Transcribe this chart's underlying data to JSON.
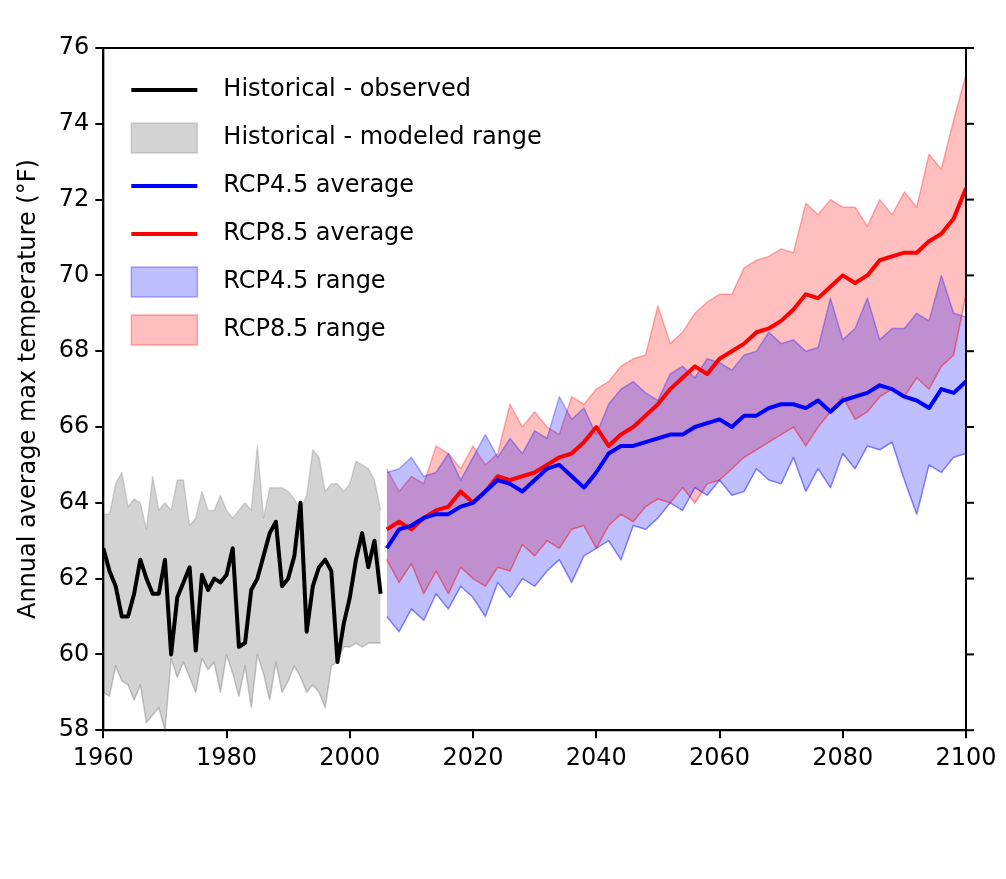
{
  "chart_data": {
    "type": "line",
    "ylabel": "Annual average max temperature (°F)",
    "xlim": [
      1960,
      2100
    ],
    "xticks": [
      1960,
      1980,
      2000,
      2020,
      2040,
      2060,
      2080,
      2100
    ],
    "ylim": [
      58,
      76
    ],
    "yticks": [
      58,
      60,
      62,
      64,
      66,
      68,
      70,
      72,
      74,
      76
    ],
    "grid": false,
    "legend": "top left",
    "series": [
      {
        "name": "Historical - observed",
        "type": "line",
        "color": "#000000",
        "x": [
          1960,
          1961,
          1962,
          1963,
          1964,
          1965,
          1966,
          1967,
          1968,
          1969,
          1970,
          1971,
          1972,
          1973,
          1974,
          1975,
          1976,
          1977,
          1978,
          1979,
          1980,
          1981,
          1982,
          1983,
          1984,
          1985,
          1986,
          1987,
          1988,
          1989,
          1990,
          1991,
          1992,
          1993,
          1994,
          1995,
          1996,
          1997,
          1998,
          1999,
          2000,
          2001,
          2002,
          2003,
          2004,
          2005
        ],
        "values": [
          62.8,
          62.2,
          61.8,
          61.0,
          61.0,
          61.6,
          62.5,
          62.0,
          61.6,
          61.6,
          62.5,
          60.0,
          61.5,
          61.9,
          62.3,
          60.1,
          62.1,
          61.7,
          62.0,
          61.9,
          62.1,
          62.8,
          60.2,
          60.3,
          61.7,
          62.0,
          62.6,
          63.2,
          63.5,
          61.8,
          62.0,
          62.6,
          64.0,
          60.6,
          61.8,
          62.3,
          62.5,
          62.2,
          59.8,
          60.8,
          61.5,
          62.5,
          63.2,
          62.3,
          63.0,
          61.6
        ]
      },
      {
        "name": "Historical - modeled range",
        "type": "area",
        "color": "#808080",
        "x": [
          1960,
          1961,
          1962,
          1963,
          1964,
          1965,
          1966,
          1967,
          1968,
          1969,
          1970,
          1971,
          1972,
          1973,
          1974,
          1975,
          1976,
          1977,
          1978,
          1979,
          1980,
          1981,
          1982,
          1983,
          1984,
          1985,
          1986,
          1987,
          1988,
          1989,
          1990,
          1991,
          1992,
          1993,
          1994,
          1995,
          1996,
          1997,
          1998,
          1999,
          2000,
          2001,
          2002,
          2003,
          2004,
          2005
        ],
        "values": [
          63.7,
          63.7,
          64.5,
          64.8,
          63.9,
          64.1,
          64.0,
          63.3,
          64.7,
          63.8,
          64.0,
          63.8,
          64.6,
          64.6,
          63.4,
          63.6,
          64.3,
          63.8,
          63.8,
          64.2,
          63.8,
          63.6,
          63.8,
          64.0,
          63.8,
          65.5,
          63.6,
          64.4,
          64.4,
          64.4,
          64.3,
          64.1,
          63.8,
          64.2,
          65.4,
          65.2,
          64.3,
          64.5,
          64.5,
          64.3,
          64.5,
          65.1,
          65.0,
          64.9,
          64.6,
          63.8
        ]
      },
      {
        "type": "line",
        "color": "#808080",
        "x": [
          1960,
          1961,
          1962,
          1963,
          1964,
          1965,
          1966,
          1967,
          1968,
          1969,
          1970,
          1971,
          1972,
          1973,
          1974,
          1975,
          1976,
          1977,
          1978,
          1979,
          1980,
          1981,
          1982,
          1983,
          1984,
          1985,
          1986,
          1987,
          1988,
          1989,
          1990,
          1991,
          1992,
          1993,
          1994,
          1995,
          1996,
          1997,
          1998,
          1999,
          2000,
          2001,
          2002,
          2003,
          2004,
          2005
        ],
        "values": [
          59.0,
          58.9,
          59.7,
          59.3,
          59.2,
          58.8,
          59.2,
          58.2,
          58.4,
          58.6,
          58.0,
          59.9,
          59.4,
          59.8,
          59.4,
          59.0,
          59.9,
          59.6,
          59.8,
          59.0,
          60.0,
          59.5,
          58.9,
          59.7,
          58.6,
          60.0,
          59.5,
          58.8,
          59.8,
          59.0,
          59.3,
          59.7,
          59.4,
          59.0,
          59.2,
          59.0,
          58.6,
          59.7,
          59.8,
          60.2,
          60.2,
          60.3,
          60.2,
          60.3,
          60.3,
          60.3
        ]
      },
      {
        "name": "RCP4.5 average",
        "type": "line",
        "color": "#0000ff",
        "x": [
          2006,
          2008,
          2010,
          2012,
          2014,
          2016,
          2018,
          2020,
          2022,
          2024,
          2026,
          2028,
          2030,
          2032,
          2034,
          2036,
          2038,
          2040,
          2042,
          2044,
          2046,
          2048,
          2050,
          2052,
          2054,
          2056,
          2058,
          2060,
          2062,
          2064,
          2066,
          2068,
          2070,
          2072,
          2074,
          2076,
          2078,
          2080,
          2082,
          2084,
          2086,
          2088,
          2090,
          2092,
          2094,
          2096,
          2098,
          2100
        ],
        "values": [
          62.8,
          63.3,
          63.4,
          63.6,
          63.7,
          63.7,
          63.9,
          64.0,
          64.3,
          64.6,
          64.5,
          64.3,
          64.6,
          64.9,
          65.0,
          64.7,
          64.4,
          64.8,
          65.3,
          65.5,
          65.5,
          65.6,
          65.7,
          65.8,
          65.8,
          66.0,
          66.1,
          66.2,
          66.0,
          66.3,
          66.3,
          66.5,
          66.6,
          66.6,
          66.5,
          66.7,
          66.4,
          66.7,
          66.8,
          66.9,
          67.1,
          67.0,
          66.8,
          66.7,
          66.5,
          67.0,
          66.9,
          67.2
        ]
      },
      {
        "name": "RCP8.5 average",
        "type": "line",
        "color": "#ff0000",
        "x": [
          2006,
          2008,
          2010,
          2012,
          2014,
          2016,
          2018,
          2020,
          2022,
          2024,
          2026,
          2028,
          2030,
          2032,
          2034,
          2036,
          2038,
          2040,
          2042,
          2044,
          2046,
          2048,
          2050,
          2052,
          2054,
          2056,
          2058,
          2060,
          2062,
          2064,
          2066,
          2068,
          2070,
          2072,
          2074,
          2076,
          2078,
          2080,
          2082,
          2084,
          2086,
          2088,
          2090,
          2092,
          2094,
          2096,
          2098,
          2100
        ],
        "values": [
          63.3,
          63.5,
          63.3,
          63.6,
          63.8,
          63.9,
          64.3,
          64.0,
          64.3,
          64.7,
          64.6,
          64.7,
          64.8,
          65.0,
          65.2,
          65.3,
          65.6,
          66.0,
          65.5,
          65.8,
          66.0,
          66.3,
          66.6,
          67.0,
          67.3,
          67.6,
          67.4,
          67.8,
          68.0,
          68.2,
          68.5,
          68.6,
          68.8,
          69.1,
          69.5,
          69.4,
          69.7,
          70.0,
          69.8,
          70.0,
          70.4,
          70.5,
          70.6,
          70.6,
          70.9,
          71.1,
          71.5,
          72.3
        ]
      },
      {
        "name": "RCP4.5 range",
        "type": "area",
        "color": "#0000ff",
        "x": [
          2006,
          2008,
          2010,
          2012,
          2014,
          2016,
          2018,
          2020,
          2022,
          2024,
          2026,
          2028,
          2030,
          2032,
          2034,
          2036,
          2038,
          2040,
          2042,
          2044,
          2046,
          2048,
          2050,
          2052,
          2054,
          2056,
          2058,
          2060,
          2062,
          2064,
          2066,
          2068,
          2070,
          2072,
          2074,
          2076,
          2078,
          2080,
          2082,
          2084,
          2086,
          2088,
          2090,
          2092,
          2094,
          2096,
          2098,
          2100
        ],
        "values": [
          64.8,
          64.9,
          65.2,
          64.7,
          64.8,
          65.3,
          64.6,
          65.2,
          65.8,
          65.2,
          65.7,
          65.3,
          65.9,
          65.7,
          66.8,
          66.2,
          66.5,
          65.8,
          66.6,
          67.0,
          67.2,
          66.9,
          66.7,
          67.4,
          67.6,
          67.3,
          67.8,
          67.7,
          67.5,
          67.9,
          68.0,
          68.5,
          68.2,
          68.3,
          68.0,
          68.1,
          69.4,
          68.3,
          68.6,
          69.4,
          68.3,
          68.6,
          68.6,
          69.0,
          68.8,
          70.0,
          69.0,
          68.9
        ]
      },
      {
        "type": "line",
        "color": "#0000ff",
        "x": [
          2006,
          2008,
          2010,
          2012,
          2014,
          2016,
          2018,
          2020,
          2022,
          2024,
          2026,
          2028,
          2030,
          2032,
          2034,
          2036,
          2038,
          2040,
          2042,
          2044,
          2046,
          2048,
          2050,
          2052,
          2054,
          2056,
          2058,
          2060,
          2062,
          2064,
          2066,
          2068,
          2070,
          2072,
          2074,
          2076,
          2078,
          2080,
          2082,
          2084,
          2086,
          2088,
          2090,
          2092,
          2094,
          2096,
          2098,
          2100
        ],
        "values": [
          61.0,
          60.6,
          61.2,
          60.9,
          61.6,
          61.2,
          61.8,
          61.5,
          61.0,
          61.9,
          61.5,
          62.0,
          61.8,
          62.2,
          62.5,
          61.9,
          62.6,
          62.8,
          63.0,
          62.5,
          63.4,
          63.3,
          63.6,
          64.0,
          63.8,
          64.4,
          64.2,
          64.6,
          64.2,
          64.3,
          64.9,
          64.6,
          64.5,
          65.2,
          64.3,
          64.9,
          64.4,
          65.3,
          64.9,
          65.5,
          65.4,
          65.6,
          64.6,
          63.7,
          65.0,
          64.8,
          65.2,
          65.3
        ]
      },
      {
        "name": "RCP8.5 range",
        "type": "area",
        "color": "#ff0000",
        "x": [
          2006,
          2008,
          2010,
          2012,
          2014,
          2016,
          2018,
          2020,
          2022,
          2024,
          2026,
          2028,
          2030,
          2032,
          2034,
          2036,
          2038,
          2040,
          2042,
          2044,
          2046,
          2048,
          2050,
          2052,
          2054,
          2056,
          2058,
          2060,
          2062,
          2064,
          2066,
          2068,
          2070,
          2072,
          2074,
          2076,
          2078,
          2080,
          2082,
          2084,
          2086,
          2088,
          2090,
          2092,
          2094,
          2096,
          2098,
          2100
        ],
        "values": [
          64.9,
          64.3,
          64.7,
          64.5,
          65.5,
          65.3,
          64.9,
          65.5,
          65.0,
          65.3,
          66.6,
          66.0,
          66.4,
          66.0,
          65.8,
          66.8,
          66.6,
          67.0,
          67.2,
          67.6,
          67.8,
          67.9,
          69.2,
          68.2,
          68.5,
          69.0,
          69.3,
          69.5,
          69.5,
          70.2,
          70.4,
          70.5,
          70.7,
          70.6,
          71.9,
          71.6,
          72.0,
          71.8,
          71.8,
          71.3,
          72.0,
          71.6,
          72.2,
          71.8,
          73.2,
          72.8,
          74.1,
          75.3
        ]
      },
      {
        "type": "line",
        "color": "#ff0000",
        "x": [
          2006,
          2008,
          2010,
          2012,
          2014,
          2016,
          2018,
          2020,
          2022,
          2024,
          2026,
          2028,
          2030,
          2032,
          2034,
          2036,
          2038,
          2040,
          2042,
          2044,
          2046,
          2048,
          2050,
          2052,
          2054,
          2056,
          2058,
          2060,
          2062,
          2064,
          2066,
          2068,
          2070,
          2072,
          2074,
          2076,
          2078,
          2080,
          2082,
          2084,
          2086,
          2088,
          2090,
          2092,
          2094,
          2096,
          2098,
          2100
        ],
        "values": [
          62.5,
          61.9,
          62.4,
          61.6,
          62.2,
          61.6,
          62.3,
          62.0,
          61.8,
          62.3,
          62.2,
          62.9,
          62.6,
          63.0,
          62.8,
          63.3,
          63.4,
          62.8,
          63.4,
          63.7,
          63.5,
          63.9,
          64.1,
          64.0,
          64.4,
          64.0,
          64.5,
          64.6,
          64.9,
          65.2,
          65.4,
          65.6,
          65.8,
          66.0,
          65.5,
          66.0,
          66.4,
          66.8,
          66.2,
          66.4,
          66.8,
          67.0,
          66.8,
          67.3,
          67.0,
          67.6,
          67.9,
          69.5
        ]
      }
    ]
  }
}
